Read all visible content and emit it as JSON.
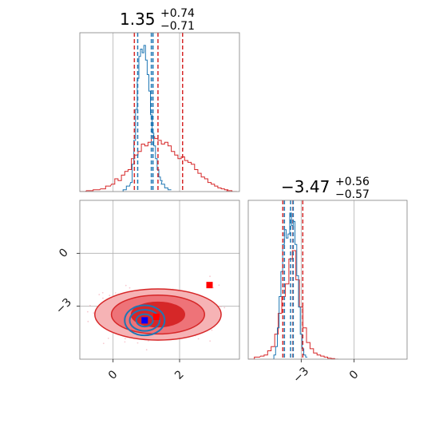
{
  "colors": {
    "red": "#d62728",
    "blue": "#1f77b4",
    "grid": "#b0b0b0",
    "frame": "#808080",
    "truth_red": "#ff0000",
    "truth_blue": "#0000ff"
  },
  "chart_data": {
    "type": "corner",
    "parameters": [
      {
        "index": 0,
        "title": {
          "median": "1.35",
          "plus": "+0.74",
          "minus": "−0.71"
        },
        "range": [
          -1.0,
          3.8
        ],
        "ticks": [
          0,
          2
        ],
        "tick_labels": [
          "0",
          "2"
        ],
        "quantiles_red": [
          0.64,
          1.35,
          2.09
        ],
        "quantiles_blue": [
          0.74,
          1.15,
          1.2
        ],
        "hist_blue": {
          "x": [
            0.35,
            0.45,
            0.55,
            0.6,
            0.65,
            0.7,
            0.75,
            0.8,
            0.85,
            0.9,
            0.95,
            1.0,
            1.05,
            1.1,
            1.15,
            1.2,
            1.25,
            1.3,
            1.35,
            1.4,
            1.45,
            1.5,
            1.6,
            1.7
          ],
          "y": [
            0.01,
            0.03,
            0.05,
            0.15,
            0.28,
            0.45,
            0.62,
            0.74,
            0.78,
            0.76,
            0.8,
            0.72,
            0.64,
            0.55,
            0.42,
            0.32,
            0.25,
            0.18,
            0.12,
            0.08,
            0.06,
            0.04,
            0.02,
            0.01
          ]
        },
        "hist_red": {
          "x": [
            -0.95,
            -0.7,
            -0.5,
            -0.3,
            -0.15,
            0.0,
            0.1,
            0.2,
            0.3,
            0.4,
            0.5,
            0.6,
            0.7,
            0.8,
            0.9,
            1.0,
            1.1,
            1.2,
            1.3,
            1.4,
            1.5,
            1.6,
            1.7,
            1.8,
            1.9,
            2.0,
            2.1,
            2.2,
            2.3,
            2.4,
            2.5,
            2.6,
            2.7,
            2.8,
            2.9,
            3.0,
            3.1,
            3.2,
            3.3,
            3.4,
            3.5,
            3.65
          ],
          "y": [
            0.0,
            0.005,
            0.01,
            0.015,
            0.03,
            0.04,
            0.07,
            0.06,
            0.09,
            0.11,
            0.12,
            0.18,
            0.2,
            0.22,
            0.26,
            0.25,
            0.27,
            0.3,
            0.29,
            0.28,
            0.26,
            0.27,
            0.25,
            0.22,
            0.2,
            0.18,
            0.19,
            0.17,
            0.16,
            0.15,
            0.12,
            0.1,
            0.08,
            0.07,
            0.05,
            0.04,
            0.03,
            0.02,
            0.015,
            0.01,
            0.005,
            0.0
          ]
        }
      },
      {
        "index": 1,
        "title": {
          "median": "−3.47",
          "plus": "+0.56",
          "minus": "−0.57"
        },
        "range": [
          -6.0,
          3.0
        ],
        "ticks": [
          -3,
          0
        ],
        "tick_labels": [
          "−3",
          "0"
        ],
        "quantiles_red": [
          -4.04,
          -3.47,
          -2.91
        ],
        "quantiles_blue": [
          -3.95,
          -3.6,
          -3.45
        ],
        "hist_blue": {
          "x": [
            -4.5,
            -4.4,
            -4.3,
            -4.2,
            -4.1,
            -4.0,
            -3.9,
            -3.8,
            -3.7,
            -3.6,
            -3.5,
            -3.4,
            -3.3,
            -3.2,
            -3.1,
            -3.0,
            -2.9,
            -2.8,
            -2.7
          ],
          "y": [
            0.02,
            0.06,
            0.15,
            0.3,
            0.42,
            0.55,
            0.62,
            0.58,
            0.6,
            0.7,
            0.64,
            0.66,
            0.55,
            0.4,
            0.25,
            0.12,
            0.05,
            0.02,
            0.01
          ]
        },
        "hist_red": {
          "x": [
            -5.8,
            -5.5,
            -5.2,
            -5.0,
            -4.8,
            -4.6,
            -4.4,
            -4.2,
            -4.0,
            -3.8,
            -3.6,
            -3.4,
            -3.2,
            -3.0,
            -2.8,
            -2.6,
            -2.4,
            -2.2,
            -2.0,
            -1.8,
            -1.6,
            -1.4,
            -1.2,
            -1.0
          ],
          "y": [
            0.0,
            0.01,
            0.015,
            0.02,
            0.04,
            0.06,
            0.12,
            0.22,
            0.3,
            0.36,
            0.48,
            0.52,
            0.38,
            0.25,
            0.15,
            0.08,
            0.05,
            0.03,
            0.02,
            0.015,
            0.01,
            0.005,
            0.003,
            0.0
          ]
        }
      }
    ],
    "joint": {
      "x_range": [
        -1.0,
        3.8
      ],
      "y_range": [
        -6.0,
        3.0
      ],
      "contours_red": [
        {
          "cx": 1.35,
          "cy": -3.47,
          "rx": 0.8,
          "ry": 0.7,
          "level": "inner"
        },
        {
          "cx": 1.35,
          "cy": -3.47,
          "rx": 1.4,
          "ry": 1.1,
          "level": "middle"
        },
        {
          "cx": 1.35,
          "cy": -3.47,
          "rx": 1.9,
          "ry": 1.45,
          "level": "outer"
        }
      ],
      "contours_blue": [
        {
          "cx": 0.95,
          "cy": -3.8,
          "rx": 0.25,
          "ry": 0.35,
          "level": "inner"
        },
        {
          "cx": 0.95,
          "cy": -3.8,
          "rx": 0.45,
          "ry": 0.6,
          "level": "middle"
        },
        {
          "cx": 0.95,
          "cy": -3.8,
          "rx": 0.6,
          "ry": 0.85,
          "level": "outer"
        }
      ],
      "markers": [
        {
          "x": 2.9,
          "y": -1.8,
          "color": "#ff0000",
          "shape": "square"
        },
        {
          "x": 1.3,
          "y": -3.6,
          "color": "#ff0000",
          "shape": "square"
        },
        {
          "x": 0.95,
          "y": -3.8,
          "color": "#0000ff",
          "shape": "square"
        }
      ]
    }
  }
}
